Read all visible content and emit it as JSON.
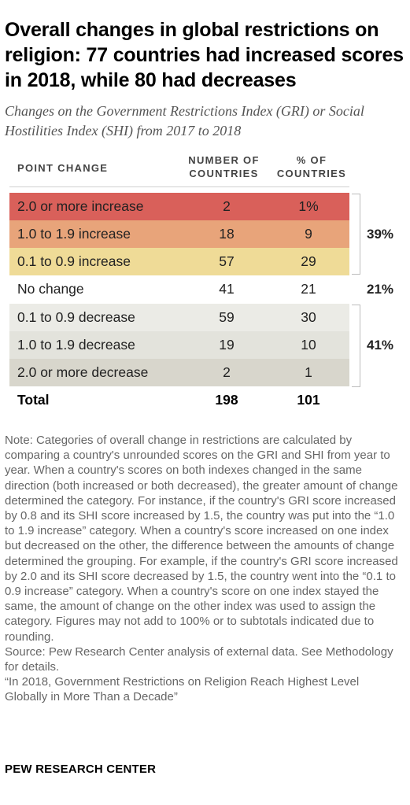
{
  "title": "Overall changes in global restrictions on religion: 77 countries had increased scores in 2018, while 80 had decreases",
  "subtitle": "Changes on the Government Restrictions Index (GRI) or Social Hostilities Index (SHI) from 2017 to 2018",
  "headers": {
    "point_change": "POINT CHANGE",
    "num_line1": "NUMBER OF",
    "num_line2": "COUNTRIES",
    "pct_line1": "% OF",
    "pct_line2": "COUNTRIES"
  },
  "colors": {
    "r1": "#d9605a",
    "r2": "#e8a47a",
    "r3": "#efdb97",
    "r4": "#ffffff",
    "r5": "#ebebe6",
    "r6": "#e3e3dc",
    "r7": "#d8d6cc"
  },
  "brackets": {
    "increase": "39%",
    "none": "21%",
    "decrease": "41%"
  },
  "chart_data": {
    "type": "table",
    "columns": [
      "POINT CHANGE",
      "NUMBER OF COUNTRIES",
      "% OF COUNTRIES"
    ],
    "rows": [
      {
        "label": "2.0 or more increase",
        "count": "2",
        "pct": "1%"
      },
      {
        "label": "1.0 to 1.9 increase",
        "count": "18",
        "pct": "9"
      },
      {
        "label": "0.1 to 0.9 increase",
        "count": "57",
        "pct": "29"
      },
      {
        "label": "No change",
        "count": "41",
        "pct": "21"
      },
      {
        "label": "0.1 to 0.9 decrease",
        "count": "59",
        "pct": "30"
      },
      {
        "label": "1.0 to 1.9 decrease",
        "count": "19",
        "pct": "10"
      },
      {
        "label": "2.0 or more decrease",
        "count": "2",
        "pct": "1"
      }
    ],
    "total": {
      "label": "Total",
      "count": "198",
      "pct": "101"
    }
  },
  "note": [
    "Note: Categories of overall change in restrictions are calculated by comparing a country's unrounded scores on the GRI and SHI from year to year. When a country's scores on both indexes changed in the same direction (both increased or both decreased), the greater amount of change determined the category. For instance, if the country's GRI score increased by 0.8 and its SHI score increased by 1.5, the country was put into the “1.0 to 1.9 increase” category. When a country's score increased on one index but decreased on the other, the difference between the amounts of change determined the grouping. For example, if the country's GRI score increased by 2.0 and its SHI score decreased by 1.5, the country went into the “0.1 to 0.9 increase” category. When a country's score on one index stayed the same, the amount of change on the other index was used to assign the category. Figures may not add to 100% or to subtotals indicated due to rounding.",
    "Source: Pew Research Center analysis of external data. See Methodology for details.",
    "“In 2018, Government Restrictions on Religion Reach Highest Level Globally in More Than a Decade”"
  ],
  "source_label": "PEW RESEARCH CENTER"
}
